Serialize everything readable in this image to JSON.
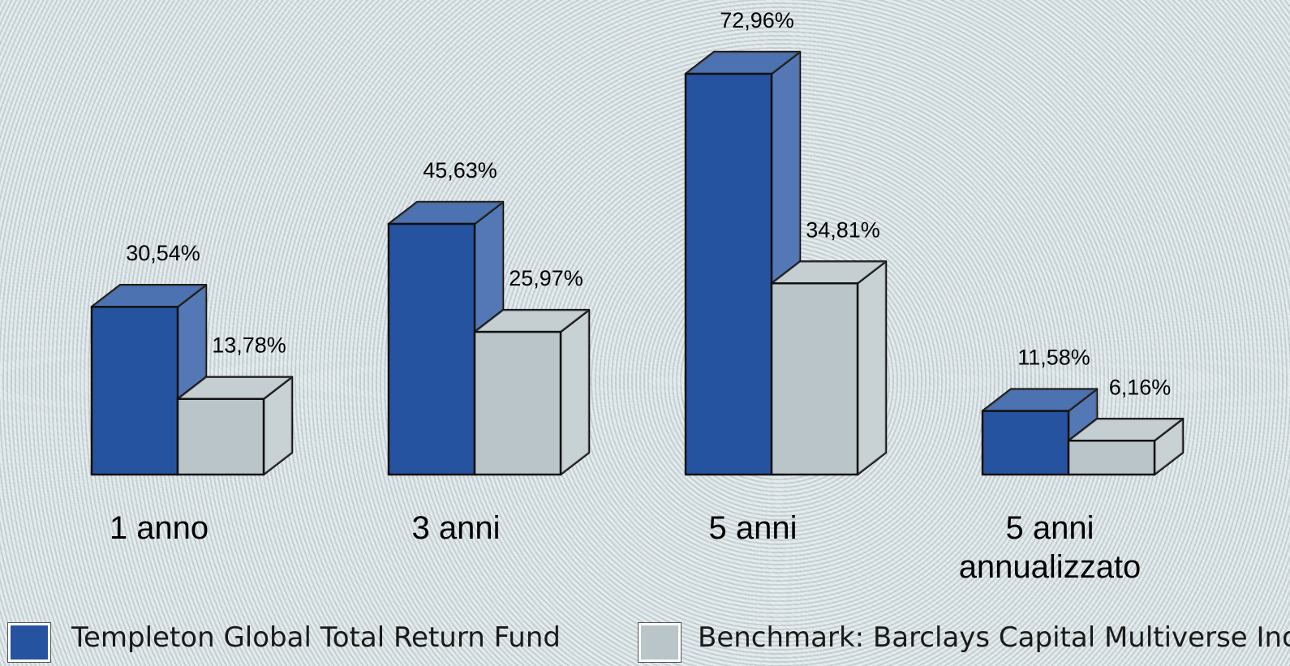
{
  "chart_data": {
    "type": "bar3d",
    "categories": [
      "1 anno",
      "3 anni",
      "5 anni",
      "5 anni annualizzato"
    ],
    "series": [
      {
        "name": "Templeton Global Total Return Fund",
        "color": "#2553a0",
        "values": [
          30.54,
          45.63,
          72.96,
          11.58
        ],
        "value_labels": [
          "30,54%",
          "45,63%",
          "72,96%",
          "11,58%"
        ]
      },
      {
        "name": "Benchmark: Barclays Capital Multiverse Index",
        "color": "#b9c5c8",
        "values": [
          13.78,
          25.97,
          34.81,
          6.16
        ],
        "value_labels": [
          "13,78%",
          "25,97%",
          "34,81%",
          "6,16%"
        ]
      }
    ]
  }
}
